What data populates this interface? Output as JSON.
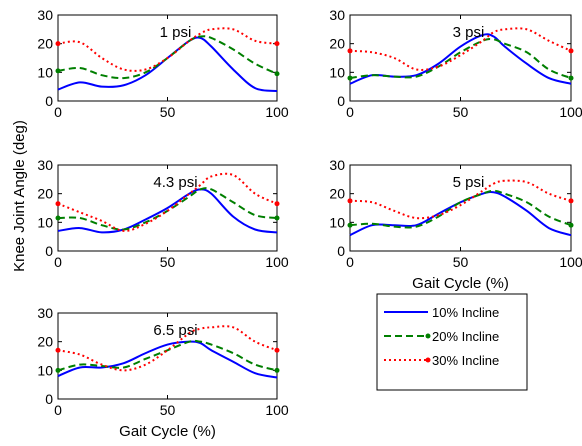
{
  "chart_data": {
    "type": "line",
    "shared_ylabel": "Knee Joint Angle (deg)",
    "legend": {
      "position": "bottom-right",
      "entries": [
        {
          "name": "10% Incline",
          "color": "#0000ff",
          "dash": "solid",
          "marker": "none"
        },
        {
          "name": "20% Incline",
          "color": "#007f00",
          "dash": "dashed",
          "marker": "dot"
        },
        {
          "name": "30% Incline",
          "color": "#ff0000",
          "dash": "dotted",
          "marker": "dot"
        }
      ]
    },
    "panels": [
      {
        "title": "1 psi",
        "xlabel": "",
        "xlim": [
          0,
          100
        ],
        "ylim": [
          0,
          30
        ],
        "xticks": [
          0,
          50,
          100
        ],
        "yticks": [
          0,
          10,
          20,
          30
        ],
        "x": [
          0,
          10,
          20,
          30,
          40,
          50,
          60,
          65,
          70,
          80,
          90,
          100
        ],
        "series": [
          {
            "name": "10% Incline",
            "values": [
              4,
              6.5,
              5,
              5.5,
              9,
              15,
              21,
              22,
              19,
              11,
              4.5,
              3.5
            ]
          },
          {
            "name": "20% Incline",
            "values": [
              10.5,
              11.5,
              9,
              8,
              10,
              15,
              21,
              22.5,
              22,
              18,
              13,
              9.5
            ]
          },
          {
            "name": "30% Incline",
            "values": [
              20,
              20.5,
              15,
              11,
              11,
              15,
              21,
              23.5,
              25,
              25,
              21,
              20
            ]
          }
        ]
      },
      {
        "title": "3 psi",
        "xlabel": "",
        "xlim": [
          0,
          100
        ],
        "ylim": [
          0,
          30
        ],
        "xticks": [
          0,
          50,
          100
        ],
        "yticks": [
          0,
          10,
          20,
          30
        ],
        "x": [
          0,
          10,
          20,
          30,
          40,
          50,
          60,
          65,
          70,
          80,
          90,
          100
        ],
        "series": [
          {
            "name": "10% Incline",
            "values": [
              6,
              9,
              8.5,
              9,
              13,
              19,
              23,
              22.5,
              19,
              13,
              8,
              6
            ]
          },
          {
            "name": "20% Incline",
            "values": [
              8,
              9,
              8.5,
              8.5,
              12,
              17,
              21,
              21.5,
              20,
              17,
              11,
              8
            ]
          },
          {
            "name": "30% Incline",
            "values": [
              17.5,
              17,
              15,
              11,
              12,
              16,
              21,
              24,
              25,
              25,
              21,
              17.5
            ]
          }
        ]
      },
      {
        "title": "4.3 psi",
        "xlabel": "",
        "xlim": [
          0,
          100
        ],
        "ylim": [
          0,
          30
        ],
        "xticks": [
          0,
          50,
          100
        ],
        "yticks": [
          0,
          10,
          20,
          30
        ],
        "x": [
          0,
          10,
          20,
          30,
          40,
          50,
          60,
          65,
          70,
          80,
          90,
          100
        ],
        "series": [
          {
            "name": "10% Incline",
            "values": [
              7,
              8,
              6.5,
              7.5,
              11,
              15,
              20,
              21.5,
              20,
              12,
              7.5,
              6.5
            ]
          },
          {
            "name": "20% Incline",
            "values": [
              11.5,
              11.5,
              9,
              7.5,
              10,
              14,
              19,
              21.5,
              21.5,
              17,
              12.5,
              11.5
            ]
          },
          {
            "name": "30% Incline",
            "values": [
              16.5,
              13.5,
              10.5,
              7,
              9.5,
              14,
              20,
              23,
              26,
              26.5,
              20,
              16.5
            ]
          }
        ]
      },
      {
        "title": "5 psi",
        "xlabel": "Gait Cycle (%)",
        "xlim": [
          0,
          100
        ],
        "ylim": [
          0,
          30
        ],
        "xticks": [
          0,
          50,
          100
        ],
        "yticks": [
          0,
          10,
          20,
          30
        ],
        "x": [
          0,
          10,
          20,
          30,
          40,
          50,
          60,
          65,
          70,
          80,
          90,
          100
        ],
        "series": [
          {
            "name": "10% Incline",
            "values": [
              5.5,
              9,
              9,
              9,
              13,
              17,
              20,
              20.5,
              19,
              14,
              8,
              5.5
            ]
          },
          {
            "name": "20% Incline",
            "values": [
              9,
              9.5,
              8.5,
              8.5,
              12,
              17,
              20,
              21,
              20,
              17,
              12,
              9
            ]
          },
          {
            "name": "30% Incline",
            "values": [
              17.5,
              17,
              14,
              11.5,
              12.5,
              16,
              21,
              23.5,
              24.5,
              24,
              20,
              17.5
            ]
          }
        ]
      },
      {
        "title": "6.5 psi",
        "xlabel": "Gait Cycle (%)",
        "xlim": [
          0,
          100
        ],
        "ylim": [
          0,
          30
        ],
        "xticks": [
          0,
          50,
          100
        ],
        "yticks": [
          0,
          10,
          20,
          30
        ],
        "x": [
          0,
          10,
          20,
          30,
          40,
          50,
          60,
          65,
          70,
          80,
          90,
          100
        ],
        "series": [
          {
            "name": "10% Incline",
            "values": [
              8,
              11,
              11,
              12.5,
              16,
              19,
              20,
              19.5,
              17,
              13,
              9,
              7.5
            ]
          },
          {
            "name": "20% Incline",
            "values": [
              10,
              12,
              11.5,
              11,
              14,
              17,
              20,
              20,
              19,
              16,
              12,
              10
            ]
          },
          {
            "name": "30% Incline",
            "values": [
              17,
              15.5,
              12,
              10,
              12,
              17,
              23,
              24.5,
              25,
              25,
              20,
              17
            ]
          }
        ]
      }
    ]
  }
}
